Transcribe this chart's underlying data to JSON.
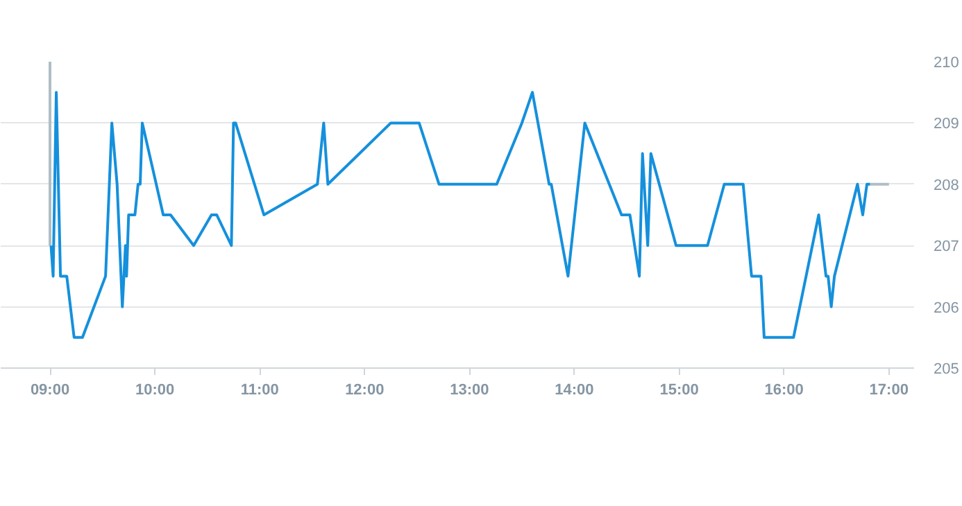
{
  "chart_data": {
    "type": "line",
    "xlim": [
      8.53,
      17.24
    ],
    "ylim": [
      205,
      210
    ],
    "xticks": [
      {
        "value": 9,
        "label": "09:00"
      },
      {
        "value": 10,
        "label": "10:00"
      },
      {
        "value": 11,
        "label": "11:00"
      },
      {
        "value": 12,
        "label": "12:00"
      },
      {
        "value": 13,
        "label": "13:00"
      },
      {
        "value": 14,
        "label": "14:00"
      },
      {
        "value": 15,
        "label": "15:00"
      },
      {
        "value": 16,
        "label": "16:00"
      },
      {
        "value": 17,
        "label": "17:00"
      }
    ],
    "yticks": [
      205,
      206,
      207,
      208,
      209,
      210
    ],
    "grid": "y",
    "line_style": "solid",
    "series": [
      {
        "color": "#b0bec5",
        "x": [
          9.0,
          9.0
        ],
        "values": [
          207.0,
          210.0
        ]
      },
      {
        "color": "#b0bec5",
        "x": [
          16.82,
          17.0
        ],
        "values": [
          208.0,
          208.0
        ]
      },
      {
        "color": "#1590dc",
        "x": [
          9.01,
          9.03,
          9.06,
          9.1,
          9.16,
          9.23,
          9.31,
          9.53,
          9.59,
          9.64,
          9.69,
          9.72,
          9.73,
          9.75,
          9.81,
          9.84,
          9.86,
          9.88,
          10.08,
          10.15,
          10.37,
          10.54,
          10.59,
          10.73,
          10.75,
          10.77,
          11.04,
          11.55,
          11.61,
          11.65,
          12.25,
          12.52,
          12.71,
          13.26,
          13.5,
          13.6,
          13.76,
          13.78,
          13.94,
          14.1,
          14.45,
          14.53,
          14.62,
          14.65,
          14.7,
          14.73,
          14.97,
          15.27,
          15.43,
          15.61,
          15.69,
          15.78,
          15.81,
          16.09,
          16.33,
          16.4,
          16.42,
          16.45,
          16.48,
          16.7,
          16.75,
          16.79,
          16.82
        ],
        "values": [
          207.0,
          206.5,
          209.5,
          206.5,
          206.5,
          205.5,
          205.5,
          206.5,
          209.0,
          208.0,
          206.0,
          207.0,
          206.5,
          207.5,
          207.5,
          208.0,
          208.0,
          209.0,
          207.5,
          207.5,
          207.0,
          207.5,
          207.5,
          207.0,
          209.0,
          209.0,
          207.5,
          208.0,
          209.0,
          208.0,
          209.0,
          209.0,
          208.0,
          208.0,
          209.0,
          209.5,
          208.0,
          208.0,
          206.5,
          209.0,
          207.5,
          207.5,
          206.5,
          208.5,
          207.0,
          208.5,
          207.0,
          207.0,
          208.0,
          208.0,
          206.5,
          206.5,
          205.5,
          205.5,
          207.5,
          206.5,
          206.5,
          206.0,
          206.5,
          208.0,
          207.5,
          208.0,
          208.0
        ]
      }
    ]
  }
}
